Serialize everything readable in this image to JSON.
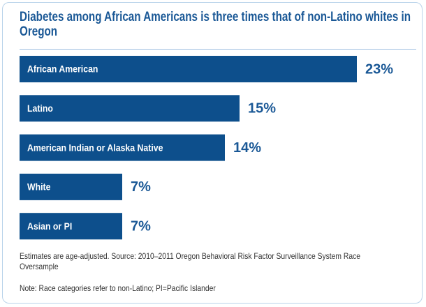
{
  "chart_data": {
    "type": "bar",
    "orientation": "horizontal",
    "title": "Diabetes among African Americans is three times that of non-Latino whites in Oregon",
    "categories": [
      "African American",
      "Latino",
      "American Indian or Alaska Native",
      "White",
      "Asian or PI"
    ],
    "values": [
      23,
      15,
      14,
      7,
      7
    ],
    "value_labels": [
      "23%",
      "15%",
      "14%",
      "7%",
      "7%"
    ],
    "color": "#0d4f8c",
    "source": "Estimates are age-adjusted. Source: 2010–2011 Oregon Behavioral Risk Factor Surveillance System Race Oversample",
    "note": "Note: Race categories refer to non-Latino; PI=Pacific Islander"
  }
}
